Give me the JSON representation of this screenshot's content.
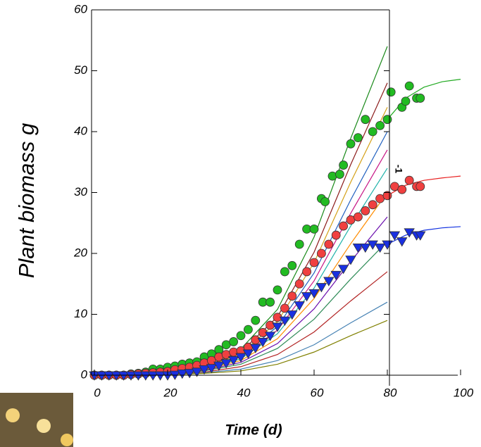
{
  "chart_data": {
    "type": "line",
    "xlabel": "Time (d)",
    "ylabel": "Plant biomass g",
    "annotation": "-1",
    "xlim": [
      0,
      100
    ],
    "ylim": [
      0,
      60
    ],
    "xticks": [
      0,
      20,
      40,
      60,
      80,
      100
    ],
    "yticks": [
      0,
      10,
      20,
      30,
      40,
      50,
      60
    ],
    "x": [
      0,
      10,
      20,
      30,
      40,
      50,
      60,
      70,
      80
    ],
    "series": [
      {
        "color": "#1a8a1a",
        "values": [
          0,
          0.1,
          0.5,
          1.6,
          4.3,
          10.8,
          22.7,
          38.9,
          54
        ]
      },
      {
        "color": "#8b1a1a",
        "values": [
          0,
          0.1,
          0.5,
          1.4,
          3.8,
          9.6,
          20.2,
          34.6,
          48
        ]
      },
      {
        "color": "#d4a017",
        "values": [
          0,
          0.1,
          0.4,
          1.3,
          3.5,
          8.8,
          18.5,
          31.7,
          44
        ]
      },
      {
        "color": "#1f5fbf",
        "values": [
          0,
          0.1,
          0.4,
          1.2,
          3.2,
          8,
          16.8,
          28.8,
          40
        ]
      },
      {
        "color": "#c71585",
        "values": [
          0,
          0.1,
          0.4,
          1.1,
          3,
          7.4,
          15.5,
          26.6,
          37
        ]
      },
      {
        "color": "#20b2aa",
        "values": [
          0,
          0.1,
          0.3,
          1,
          2.7,
          6.8,
          14.3,
          24.5,
          34
        ]
      },
      {
        "color": "#ff8c00",
        "values": [
          0,
          0.1,
          0.3,
          0.9,
          2.4,
          6,
          12.6,
          21.6,
          30
        ]
      },
      {
        "color": "#6a0dad",
        "values": [
          0,
          0.1,
          0.3,
          0.8,
          2.1,
          5.2,
          10.9,
          18.7,
          26
        ]
      },
      {
        "color": "#2e8b57",
        "values": [
          0,
          0,
          0.2,
          0.7,
          1.8,
          4.4,
          9.2,
          15.8,
          22
        ]
      },
      {
        "color": "#b22222",
        "values": [
          0,
          0,
          0.2,
          0.5,
          1.4,
          3.4,
          7.1,
          12.2,
          17
        ]
      },
      {
        "color": "#4682b4",
        "values": [
          0,
          0,
          0.1,
          0.4,
          1,
          2.4,
          5,
          8.6,
          12
        ]
      },
      {
        "color": "#808000",
        "values": [
          0,
          0,
          0.1,
          0.3,
          0.7,
          1.8,
          3.8,
          6.5,
          9
        ]
      },
      {
        "color": "#22aa22",
        "x": [
          80,
          85,
          90,
          95,
          100
        ],
        "values": [
          42,
          45.5,
          47.3,
          48.2,
          48.6
        ]
      },
      {
        "color": "#e82020",
        "x": [
          80,
          85,
          90,
          95,
          100
        ],
        "values": [
          29.5,
          31.2,
          32,
          32.4,
          32.7
        ]
      },
      {
        "color": "#1030e0",
        "x": [
          80,
          85,
          90,
          95,
          100
        ],
        "values": [
          21.5,
          23,
          23.8,
          24.2,
          24.4
        ]
      },
      {
        "color": "#22bb22",
        "marker": "circle",
        "x": [
          0,
          2,
          4,
          6,
          8,
          10,
          12,
          14,
          16,
          18,
          20,
          22,
          24,
          26,
          28,
          30,
          32,
          34,
          36,
          38,
          40,
          42,
          44,
          46,
          48,
          50,
          52,
          54,
          56,
          58,
          60,
          62,
          63,
          65,
          67,
          68,
          70,
          72,
          74,
          76,
          78,
          80,
          81,
          84,
          85,
          86,
          88,
          89
        ],
        "values": [
          0,
          0,
          0,
          0,
          0,
          0.2,
          0.3,
          0.5,
          1,
          1,
          1.3,
          1.5,
          1.8,
          2,
          2.2,
          3,
          3.5,
          4.2,
          5,
          5.5,
          6.5,
          7.5,
          9,
          12,
          12,
          14,
          17,
          18,
          21.5,
          24,
          24,
          29,
          28.5,
          32.7,
          33,
          34.5,
          38,
          39,
          42,
          40,
          41,
          42,
          46.5,
          44,
          45,
          47.5,
          45.5,
          45.5
        ]
      },
      {
        "color": "#f04040",
        "marker": "circle",
        "x": [
          0,
          2,
          4,
          6,
          8,
          10,
          12,
          14,
          16,
          18,
          20,
          22,
          24,
          26,
          28,
          30,
          32,
          34,
          36,
          38,
          40,
          42,
          44,
          46,
          48,
          50,
          52,
          54,
          56,
          58,
          60,
          62,
          64,
          66,
          68,
          70,
          72,
          74,
          76,
          78,
          80,
          82,
          84,
          86,
          88,
          89
        ],
        "values": [
          0,
          0,
          0,
          0,
          0,
          0.1,
          0.2,
          0.3,
          0.4,
          0.5,
          0.6,
          0.9,
          1.1,
          1.3,
          1.6,
          2,
          2.4,
          3,
          3.4,
          3.8,
          4,
          4.6,
          5.8,
          7,
          8.2,
          9.5,
          11,
          13,
          15,
          17,
          18.5,
          20,
          21.5,
          23,
          24.5,
          25.5,
          26,
          27,
          28,
          29,
          29.5,
          31,
          30.5,
          32,
          31,
          31
        ]
      },
      {
        "color": "#1a30e0",
        "marker": "triangle",
        "x": [
          0,
          2,
          4,
          6,
          8,
          10,
          12,
          14,
          16,
          18,
          20,
          22,
          24,
          26,
          28,
          30,
          32,
          34,
          36,
          38,
          40,
          42,
          44,
          46,
          48,
          50,
          52,
          54,
          56,
          58,
          60,
          62,
          64,
          66,
          68,
          70,
          72,
          74,
          76,
          78,
          80,
          82,
          84,
          86,
          88,
          89
        ],
        "values": [
          0,
          0,
          0,
          0,
          0,
          0,
          0,
          0,
          0,
          0,
          0,
          0.1,
          0.3,
          0.4,
          0.6,
          1,
          1.2,
          1.6,
          2,
          2.5,
          3,
          3.6,
          4.5,
          5.5,
          6.5,
          8,
          9,
          10,
          11.5,
          13,
          13.5,
          14.5,
          15.5,
          16.5,
          17.5,
          19,
          21,
          21,
          21.5,
          21,
          21.5,
          23,
          22,
          23.5,
          23,
          23
        ]
      }
    ]
  }
}
